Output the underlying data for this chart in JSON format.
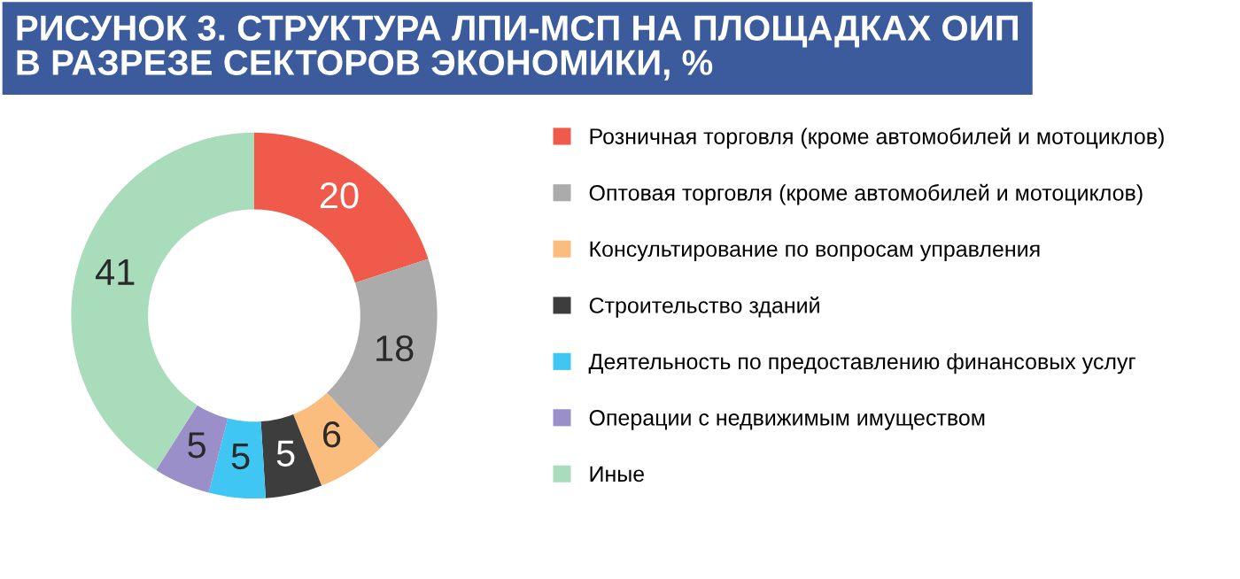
{
  "chart_data": {
    "type": "donut",
    "title": "РИСУНОК 3. СТРУКТУРА ЛПИ-МСП НА ПЛОЩАДКАХ ОИП\nВ РАЗРЕЗЕ СЕКТОРОВ ЭКОНОМИКИ, %",
    "categories": [
      "Розничная торговля (кроме автомобилей и мотоциклов)",
      "Оптовая торговля (кроме автомобилей и мотоциклов)",
      "Консультирование по вопросам управления",
      "Строительство зданий",
      "Деятельность по предоставлению финансовых услуг",
      "Операции с недвижимым имуществом",
      "Иные"
    ],
    "values": [
      20,
      18,
      6,
      5,
      5,
      5,
      41
    ],
    "colors": [
      "#f05a4a",
      "#ababab",
      "#fbbd7d",
      "#3d3d3d",
      "#3fc6f2",
      "#9b8fca",
      "#a9dcbb"
    ],
    "data_labels": true,
    "legend": "right"
  }
}
